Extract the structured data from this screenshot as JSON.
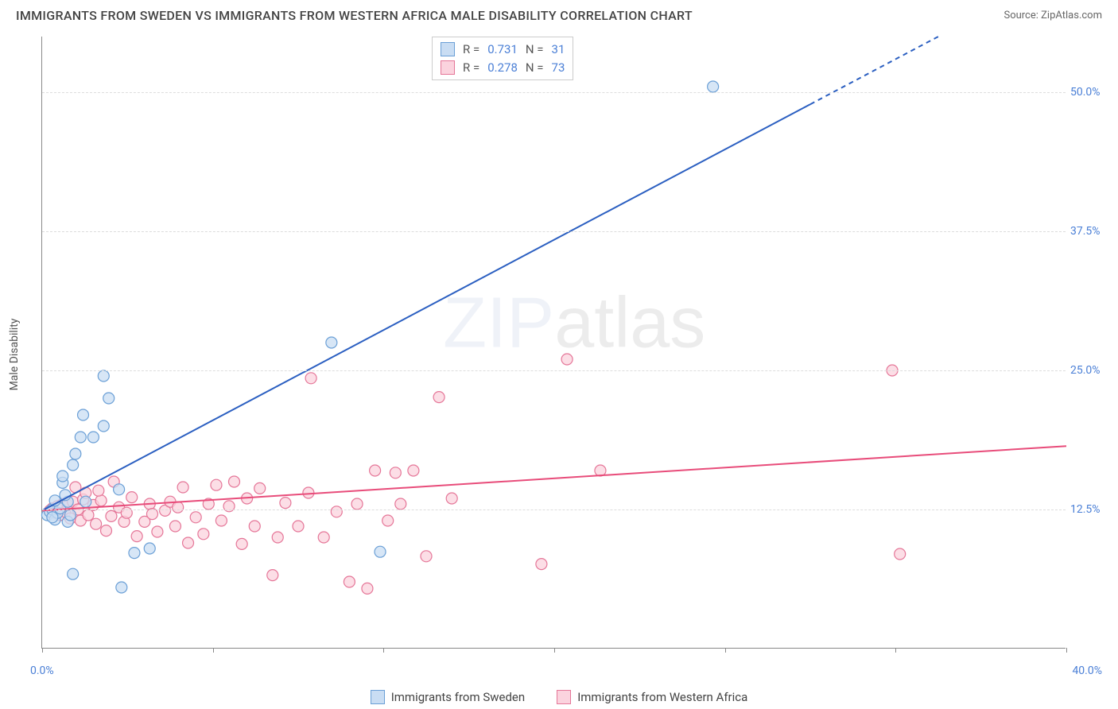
{
  "title": "IMMIGRANTS FROM SWEDEN VS IMMIGRANTS FROM WESTERN AFRICA MALE DISABILITY CORRELATION CHART",
  "source": "Source: ZipAtlas.com",
  "y_axis_label": "Male Disability",
  "watermark_zip": "ZIP",
  "watermark_atlas": "atlas",
  "chart": {
    "xlim": [
      0,
      40
    ],
    "ylim": [
      0,
      55
    ],
    "x_min_label": "0.0%",
    "x_max_label": "40.0%",
    "x_ticks": [
      0,
      6.67,
      13.33,
      20,
      26.67,
      33.33,
      40
    ],
    "y_ticks": [
      12.5,
      25.0,
      37.5,
      50.0
    ],
    "y_tick_labels": [
      "12.5%",
      "25.0%",
      "37.5%",
      "50.0%"
    ],
    "grid_color": "#dddddd",
    "axis_color": "#888888",
    "background": "#ffffff",
    "marker_radius": 7,
    "marker_stroke_width": 1.2,
    "line_width": 2
  },
  "series": {
    "sweden": {
      "label": "Immigrants from Sweden",
      "fill": "#c9ddf3",
      "stroke": "#6a9fd6",
      "line_color": "#2b5fc1",
      "r_value": "0.731",
      "n_value": "31",
      "trend": {
        "x1": 0,
        "y1": 12.4,
        "x2": 35,
        "y2": 55,
        "dash_after_x": 30
      },
      "points": [
        [
          0.2,
          12.0
        ],
        [
          0.3,
          12.3
        ],
        [
          0.4,
          12.5
        ],
        [
          0.5,
          11.6
        ],
        [
          0.6,
          12.2
        ],
        [
          0.7,
          12.6
        ],
        [
          0.8,
          14.9
        ],
        [
          1.0,
          11.4
        ],
        [
          1.2,
          16.5
        ],
        [
          1.0,
          13.2
        ],
        [
          1.5,
          19.0
        ],
        [
          1.6,
          21.0
        ],
        [
          2.0,
          19.0
        ],
        [
          2.4,
          24.5
        ],
        [
          2.4,
          20.0
        ],
        [
          2.6,
          22.5
        ],
        [
          3.0,
          14.3
        ],
        [
          3.6,
          8.6
        ],
        [
          4.2,
          9.0
        ],
        [
          3.1,
          5.5
        ],
        [
          11.3,
          27.5
        ],
        [
          13.2,
          8.7
        ],
        [
          26.2,
          50.5
        ],
        [
          1.2,
          6.7
        ],
        [
          0.8,
          15.5
        ],
        [
          0.9,
          13.8
        ],
        [
          1.3,
          17.5
        ],
        [
          1.7,
          13.2
        ],
        [
          0.5,
          13.3
        ],
        [
          0.4,
          11.8
        ],
        [
          1.1,
          12.0
        ]
      ]
    },
    "wafrica": {
      "label": "Immigrants from Western Africa",
      "fill": "#fbd3de",
      "stroke": "#e57698",
      "line_color": "#e84c7a",
      "r_value": "0.278",
      "n_value": "73",
      "trend": {
        "x1": 0,
        "y1": 12.4,
        "x2": 40,
        "y2": 18.2
      },
      "points": [
        [
          0.3,
          12.4
        ],
        [
          0.4,
          12.6
        ],
        [
          0.5,
          12.2
        ],
        [
          0.6,
          12.8
        ],
        [
          0.7,
          12.0
        ],
        [
          0.8,
          13.0
        ],
        [
          0.9,
          12.3
        ],
        [
          1.0,
          12.9
        ],
        [
          1.1,
          11.7
        ],
        [
          1.2,
          13.2
        ],
        [
          1.4,
          12.5
        ],
        [
          1.5,
          11.5
        ],
        [
          1.6,
          13.4
        ],
        [
          1.8,
          12.0
        ],
        [
          2.0,
          12.9
        ],
        [
          2.1,
          11.2
        ],
        [
          2.3,
          13.3
        ],
        [
          2.5,
          10.6
        ],
        [
          2.7,
          11.9
        ],
        [
          3.0,
          12.7
        ],
        [
          3.2,
          11.4
        ],
        [
          3.5,
          13.6
        ],
        [
          3.7,
          10.1
        ],
        [
          4.0,
          11.4
        ],
        [
          4.2,
          13.0
        ],
        [
          4.5,
          10.5
        ],
        [
          4.8,
          12.4
        ],
        [
          5.0,
          13.2
        ],
        [
          5.2,
          11.0
        ],
        [
          5.5,
          14.5
        ],
        [
          5.7,
          9.5
        ],
        [
          6.0,
          11.8
        ],
        [
          6.3,
          10.3
        ],
        [
          6.5,
          13.0
        ],
        [
          6.8,
          14.7
        ],
        [
          7.0,
          11.5
        ],
        [
          7.3,
          12.8
        ],
        [
          7.5,
          15.0
        ],
        [
          7.8,
          9.4
        ],
        [
          8.0,
          13.5
        ],
        [
          8.3,
          11.0
        ],
        [
          8.5,
          14.4
        ],
        [
          9.0,
          6.6
        ],
        [
          9.2,
          10.0
        ],
        [
          9.5,
          13.1
        ],
        [
          10.0,
          11.0
        ],
        [
          10.4,
          14.0
        ],
        [
          10.5,
          24.3
        ],
        [
          11.0,
          10.0
        ],
        [
          11.5,
          12.3
        ],
        [
          12.0,
          6.0
        ],
        [
          12.3,
          13.0
        ],
        [
          12.7,
          5.4
        ],
        [
          13.0,
          16.0
        ],
        [
          13.5,
          11.5
        ],
        [
          13.8,
          15.8
        ],
        [
          14.0,
          13.0
        ],
        [
          14.5,
          16.0
        ],
        [
          15.0,
          8.3
        ],
        [
          15.5,
          22.6
        ],
        [
          16.0,
          13.5
        ],
        [
          19.5,
          7.6
        ],
        [
          20.5,
          26.0
        ],
        [
          21.8,
          16.0
        ],
        [
          33.2,
          25.0
        ],
        [
          33.5,
          8.5
        ],
        [
          1.3,
          14.5
        ],
        [
          1.7,
          14.0
        ],
        [
          2.2,
          14.2
        ],
        [
          2.8,
          15.0
        ],
        [
          3.3,
          12.2
        ],
        [
          4.3,
          12.1
        ],
        [
          5.3,
          12.7
        ]
      ]
    }
  },
  "stats_box": {
    "r_label": "R  =",
    "n_label": "N  ="
  }
}
